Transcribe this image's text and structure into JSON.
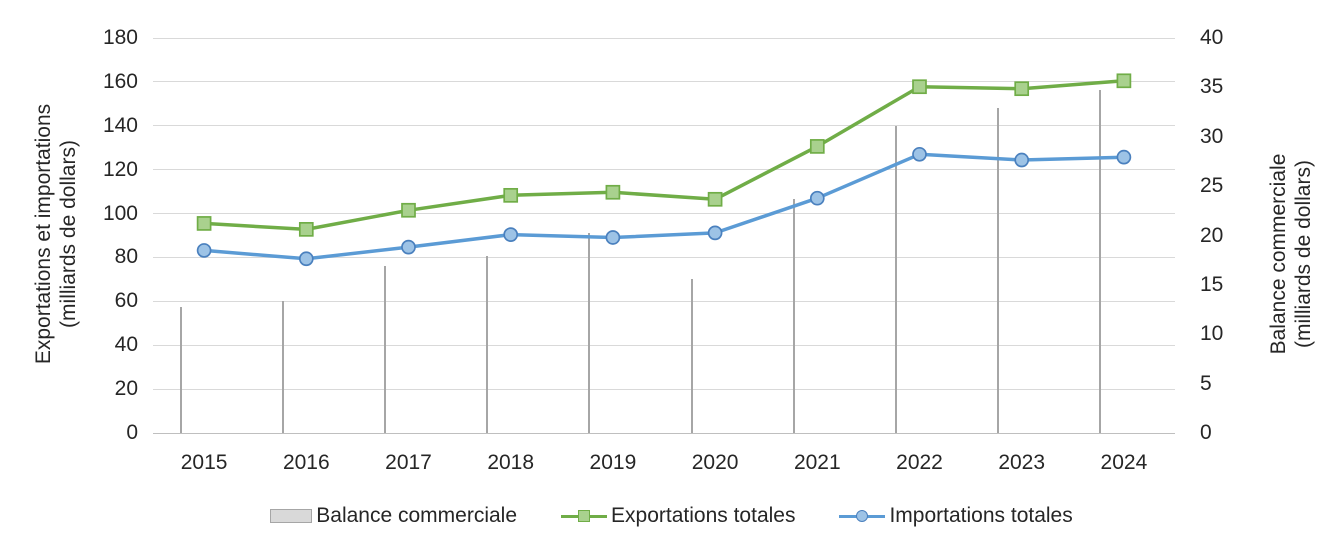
{
  "chart_data": {
    "type": "combo-bar-line",
    "categories": [
      "2015",
      "2016",
      "2017",
      "2018",
      "2019",
      "2020",
      "2021",
      "2022",
      "2023",
      "2024"
    ],
    "series": [
      {
        "name": "Balance commerciale",
        "type": "bar",
        "axis": "right",
        "values": [
          12.8,
          13.4,
          16.9,
          17.9,
          20.3,
          15.6,
          23.7,
          31.1,
          32.9,
          34.7
        ],
        "fill": "#d9d9d9",
        "border": "#a6a6a6"
      },
      {
        "name": "Exportations totales",
        "type": "line",
        "axis": "left",
        "marker": "square",
        "values": [
          95.5,
          92.8,
          101.5,
          108.3,
          109.7,
          106.5,
          130.6,
          157.8,
          156.9,
          160.5
        ],
        "color": "#70ad47",
        "marker_fill": "#a9d18e",
        "marker_border": "#70ad47"
      },
      {
        "name": "Importations totales",
        "type": "line",
        "axis": "left",
        "marker": "circle",
        "values": [
          83.2,
          79.4,
          84.7,
          90.4,
          89.1,
          91.2,
          107.0,
          127.0,
          124.4,
          125.7
        ],
        "color": "#5b9bd5",
        "marker_fill": "#9dc3e6",
        "marker_border": "#4a80be"
      }
    ],
    "left_axis": {
      "title_line1": "Exportations et importations",
      "title_line2": "(milliards de dollars)",
      "min": 0,
      "max": 180,
      "step": 20
    },
    "right_axis": {
      "title_line1": "Balance commerciale",
      "title_line2": "(milliards de dollars)",
      "min": 0,
      "max": 40,
      "step": 5
    },
    "grid": true,
    "legend_position": "bottom",
    "gridline_color": "#d9d9d9"
  }
}
